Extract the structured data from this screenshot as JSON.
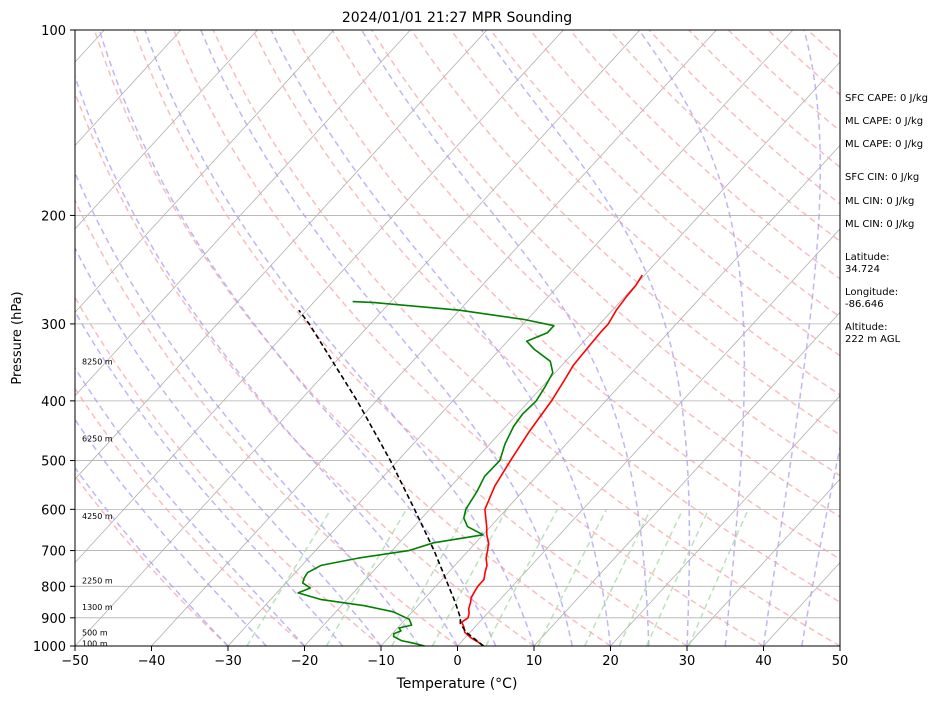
{
  "chart_data": {
    "type": "line",
    "subtype": "skew-T log-P sounding",
    "title": "2024/01/01 21:27 MPR Sounding",
    "xlabel": "Temperature (°C)",
    "ylabel": "Pressure (hPa)",
    "xlim": [
      -50,
      50
    ],
    "ylim": [
      1000,
      100
    ],
    "yscale": "log",
    "xticks": [
      "−50",
      "−40",
      "−30",
      "−20",
      "−10",
      "0",
      "10",
      "20",
      "30",
      "40",
      "50"
    ],
    "yticks": [
      "1000",
      "900",
      "800",
      "700",
      "600",
      "500",
      "400",
      "300",
      "200",
      "100"
    ],
    "grid_isobars": [
      1000,
      900,
      800,
      700,
      600,
      500,
      400,
      300,
      200
    ],
    "height_labels": [
      {
        "p": 990,
        "text": "100 m"
      },
      {
        "p": 950,
        "text": "500 m"
      },
      {
        "p": 865,
        "text": "1300 m"
      },
      {
        "p": 783,
        "text": "2250 m"
      },
      {
        "p": 615,
        "text": "4250 m"
      },
      {
        "p": 460,
        "text": "6250 m"
      },
      {
        "p": 345,
        "text": "8250 m"
      }
    ],
    "series": [
      {
        "role": "temperature",
        "color": "#ff0000",
        "points": [
          [
            1000,
            3.4
          ],
          [
            985,
            2.2
          ],
          [
            970,
            0.8
          ],
          [
            950,
            -0.7
          ],
          [
            930,
            -1.5
          ],
          [
            915,
            -2.3
          ],
          [
            900,
            -2.0
          ],
          [
            885,
            -2.4
          ],
          [
            870,
            -3.0
          ],
          [
            850,
            -3.5
          ],
          [
            835,
            -4.0
          ],
          [
            815,
            -4.3
          ],
          [
            800,
            -4.5
          ],
          [
            780,
            -4.5
          ],
          [
            760,
            -5.2
          ],
          [
            740,
            -5.8
          ],
          [
            720,
            -6.8
          ],
          [
            700,
            -7.5
          ],
          [
            680,
            -8.3
          ],
          [
            660,
            -9.5
          ],
          [
            640,
            -10.5
          ],
          [
            600,
            -12.8
          ],
          [
            550,
            -14.3
          ],
          [
            500,
            -15.3
          ],
          [
            450,
            -16.3
          ],
          [
            400,
            -17.1
          ],
          [
            370,
            -17.9
          ],
          [
            350,
            -18.5
          ],
          [
            330,
            -18.7
          ],
          [
            310,
            -18.9
          ],
          [
            300,
            -18.9
          ],
          [
            285,
            -19.5
          ],
          [
            270,
            -19.8
          ],
          [
            260,
            -19.9
          ],
          [
            250,
            -20.3
          ]
        ]
      },
      {
        "role": "dewpoint",
        "color": "#008000",
        "points": [
          [
            1000,
            -4.3
          ],
          [
            990,
            -6.0
          ],
          [
            980,
            -8.0
          ],
          [
            965,
            -9.5
          ],
          [
            955,
            -9.8
          ],
          [
            945,
            -9.2
          ],
          [
            935,
            -9.8
          ],
          [
            925,
            -8.5
          ],
          [
            905,
            -9.5
          ],
          [
            880,
            -12.5
          ],
          [
            860,
            -17.0
          ],
          [
            840,
            -23.5
          ],
          [
            820,
            -27.2
          ],
          [
            805,
            -26.2
          ],
          [
            790,
            -27.8
          ],
          [
            775,
            -28.2
          ],
          [
            760,
            -28.4
          ],
          [
            740,
            -27.5
          ],
          [
            720,
            -23.5
          ],
          [
            700,
            -17.8
          ],
          [
            680,
            -15.5
          ],
          [
            660,
            -10.0
          ],
          [
            640,
            -13.0
          ],
          [
            620,
            -14.5
          ],
          [
            600,
            -15.3
          ],
          [
            560,
            -16.0
          ],
          [
            530,
            -16.8
          ],
          [
            500,
            -16.7
          ],
          [
            470,
            -18.0
          ],
          [
            440,
            -19.0
          ],
          [
            420,
            -19.3
          ],
          [
            400,
            -19.1
          ],
          [
            380,
            -19.6
          ],
          [
            360,
            -20.3
          ],
          [
            345,
            -22.0
          ],
          [
            330,
            -25.5
          ],
          [
            320,
            -27.5
          ],
          [
            310,
            -25.8
          ],
          [
            302,
            -25.8
          ],
          [
            295,
            -30.5
          ],
          [
            285,
            -40.0
          ],
          [
            277,
            -52.0
          ],
          [
            276,
            -55.0
          ]
        ]
      },
      {
        "role": "parcel",
        "color": "#000000",
        "style": "dashed",
        "points": [
          [
            1000,
            3.4
          ],
          [
            950,
            -0.5
          ],
          [
            920,
            -2.3
          ],
          [
            900,
            -3.0
          ],
          [
            850,
            -5.5
          ],
          [
            800,
            -8.3
          ],
          [
            700,
            -14.5
          ],
          [
            600,
            -22.0
          ],
          [
            500,
            -31.0
          ],
          [
            400,
            -42.5
          ],
          [
            300,
            -58.0
          ],
          [
            285,
            -61.0
          ]
        ]
      }
    ]
  },
  "indices": {
    "sfc_cape": "SFC CAPE: 0 J/kg",
    "ml_cape_1": "ML CAPE: 0 J/kg",
    "ml_cape_2": "ML CAPE: 0 J/kg",
    "sfc_cin": "SFC CIN: 0 J/kg",
    "ml_cin_1": "ML CIN: 0 J/kg",
    "ml_cin_2": "ML CIN: 0 J/kg",
    "lat_label": "Latitude:",
    "lat_value": "34.724",
    "lon_label": "Longitude:",
    "lon_value": "-86.646",
    "alt_label": "Altitude:",
    "alt_value": "222 m AGL"
  },
  "colors": {
    "temperature": "#ff0000",
    "dewpoint": "#008000",
    "parcel": "#000000",
    "dry_adiabat": "#f5a8a8",
    "moist_adiabat": "#a99ef0",
    "mixing_ratio": "#9fd49f",
    "grid": "#b0b0b0"
  }
}
